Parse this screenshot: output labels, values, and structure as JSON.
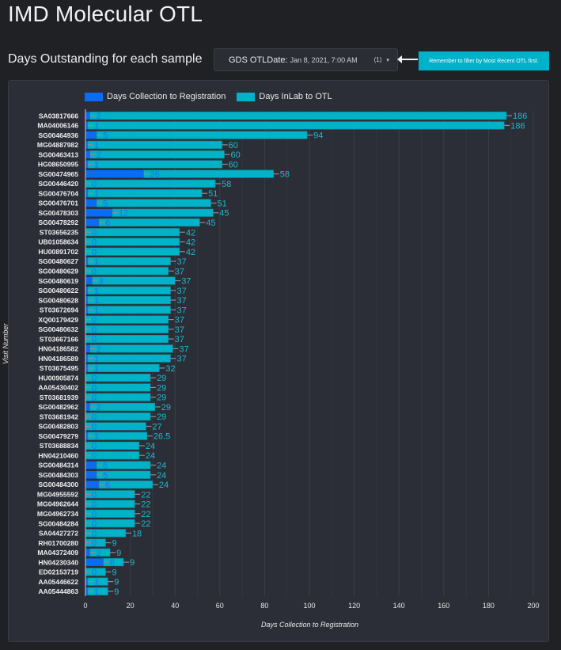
{
  "page": {
    "title": "IMD Molecular OTL",
    "section_title": "Days Outstanding for each sample"
  },
  "filter": {
    "label": "GDS OTLDate:",
    "value": "Jan 8, 2021, 7:00 AM",
    "count": "(1)",
    "caret": "▾"
  },
  "note": {
    "text": "Remember to filter by Most Recent OTL first."
  },
  "colors": {
    "collection": "#0b6cf0",
    "inlab": "#00b3c8",
    "background": "#202125",
    "panel": "#2c2e37"
  },
  "chart_data": {
    "type": "bar",
    "orientation": "horizontal",
    "stacked": true,
    "title": "Days Outstanding for each sample",
    "xlabel": "Days Collection to Registration",
    "ylabel": "Visit Number",
    "xlim": [
      0,
      200
    ],
    "xticks": [
      0,
      20,
      40,
      60,
      80,
      100,
      120,
      140,
      160,
      180,
      200
    ],
    "grid": true,
    "legend": {
      "position": "top-left",
      "entries": [
        "Days Collection to Registration",
        "Days InLab to OTL"
      ]
    },
    "categories": [
      "SA03817666",
      "MA04006146",
      "SG00464936",
      "MG04887982",
      "SG00463413",
      "HG08650995",
      "SG00474965",
      "SG00446420",
      "SG00476704",
      "SG00476701",
      "SG00478303",
      "SG00478292",
      "ST03656235",
      "UB01058634",
      "HU00891702",
      "SG00480627",
      "SG00480629",
      "SG00480619",
      "SG00480622",
      "SG00480628",
      "ST03672694",
      "XQ00179429",
      "SG00480632",
      "ST03667166",
      "HN04186582",
      "HN04186589",
      "ST03675495",
      "HU00905874",
      "AA05430402",
      "ST03681939",
      "SG00482962",
      "ST03681942",
      "SG00482803",
      "SG00479279",
      "ST03688834",
      "HN04210460",
      "SG00484314",
      "SG00484303",
      "SG00484300",
      "MG04955592",
      "MG04962644",
      "MG04962734",
      "SG00484284",
      "SA04427272",
      "RH01700280",
      "MA04372409",
      "HN04230340",
      "ED02153719",
      "AA05446622",
      "AA05444863"
    ],
    "series": [
      {
        "name": "Days Collection to Registration",
        "values": [
          2,
          1,
          5,
          1,
          2,
          1,
          26,
          0,
          1,
          5,
          12,
          6,
          0,
          0,
          0,
          1,
          0,
          3,
          1,
          1,
          1,
          0,
          0,
          0,
          2,
          1,
          1,
          0,
          0,
          0,
          2,
          0,
          0,
          1,
          0,
          0,
          5,
          5,
          6,
          0,
          0,
          0,
          0,
          0,
          0,
          2,
          8,
          0,
          1,
          1
        ]
      },
      {
        "name": "Days InLab to OTL",
        "values": [
          186,
          186,
          94,
          60,
          60,
          60,
          58,
          58,
          51,
          51,
          45,
          45,
          42,
          42,
          42,
          37,
          37,
          37,
          37,
          37,
          37,
          37,
          37,
          37,
          37,
          37,
          32,
          29,
          29,
          29,
          29,
          29,
          27,
          26.5,
          24,
          24,
          24,
          24,
          24,
          22,
          22,
          22,
          22,
          18,
          9,
          9,
          9,
          9,
          9,
          9
        ]
      }
    ]
  }
}
